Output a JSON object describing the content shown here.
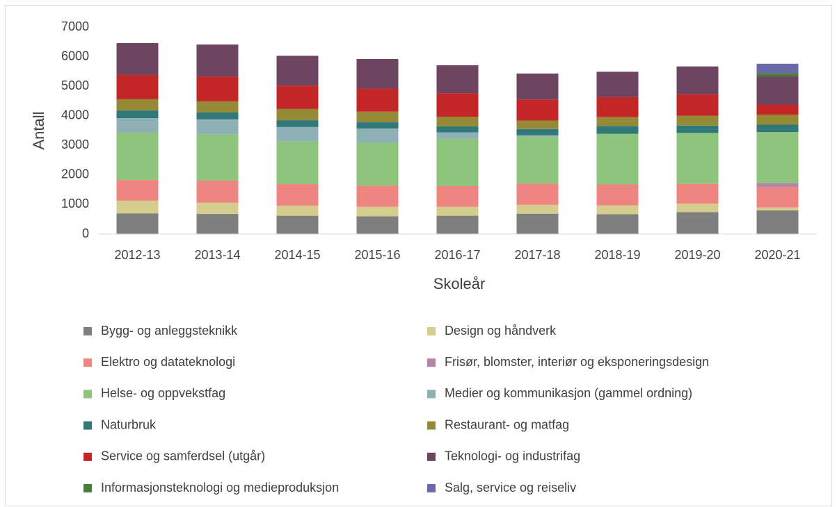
{
  "chart_data": {
    "type": "bar",
    "stacked": true,
    "ylabel": "Antall",
    "xlabel": "Skoleår",
    "categories": [
      "2012-13",
      "2013-14",
      "2014-15",
      "2015-16",
      "2016-17",
      "2017-18",
      "2018-19",
      "2019-20",
      "2020-21"
    ],
    "ylim": [
      0,
      7000
    ],
    "yticks": [
      0,
      1000,
      2000,
      3000,
      4000,
      5000,
      6000,
      7000
    ],
    "grid": false,
    "series": [
      {
        "name": "Bygg- og anleggsteknikk",
        "color": "#7f7f7f",
        "values": [
          700,
          680,
          620,
          600,
          620,
          690,
          670,
          740,
          800
        ]
      },
      {
        "name": "Design og håndverk",
        "color": "#d5cd8e",
        "values": [
          430,
          380,
          340,
          320,
          300,
          300,
          300,
          290,
          100
        ]
      },
      {
        "name": "Elektro og datateknologi",
        "color": "#ef8580",
        "values": [
          700,
          750,
          730,
          720,
          700,
          720,
          710,
          670,
          680
        ]
      },
      {
        "name": "Frisør, blomster, interiør og eksponeringsdesign",
        "color": "#b585a5",
        "values": [
          null,
          null,
          null,
          null,
          null,
          null,
          null,
          null,
          140
        ]
      },
      {
        "name": "Helse- og oppvekstfag",
        "color": "#8fc47d",
        "values": [
          1600,
          1570,
          1440,
          1450,
          1600,
          1580,
          1710,
          1720,
          1730
        ]
      },
      {
        "name": "Medier og kommunikasjon (gammel ordning)",
        "color": "#8eb1b6",
        "values": [
          490,
          500,
          490,
          480,
          220,
          50,
          null,
          null,
          null
        ]
      },
      {
        "name": "Naturbruk",
        "color": "#31787a",
        "values": [
          260,
          230,
          230,
          210,
          200,
          210,
          260,
          250,
          250
        ]
      },
      {
        "name": "Restaurant- og matfag",
        "color": "#948a38",
        "values": [
          380,
          380,
          380,
          360,
          330,
          290,
          310,
          330,
          340
        ]
      },
      {
        "name": "Service og samferdsel (utgår)",
        "color": "#c22626",
        "values": [
          820,
          840,
          790,
          780,
          790,
          710,
          670,
          730,
          340
        ]
      },
      {
        "name": "Teknologi- og industrifag",
        "color": "#6d4560",
        "values": [
          1080,
          1080,
          1010,
          1000,
          950,
          880,
          860,
          940,
          960
        ]
      },
      {
        "name": "Informasjonsteknologi og medieproduksjon",
        "color": "#4a7d3a",
        "values": [
          null,
          null,
          null,
          null,
          null,
          null,
          null,
          null,
          100
        ]
      },
      {
        "name": "Salg, service og reiseliv",
        "color": "#6a6aa8",
        "values": [
          null,
          null,
          null,
          null,
          null,
          null,
          null,
          null,
          320
        ]
      }
    ]
  }
}
